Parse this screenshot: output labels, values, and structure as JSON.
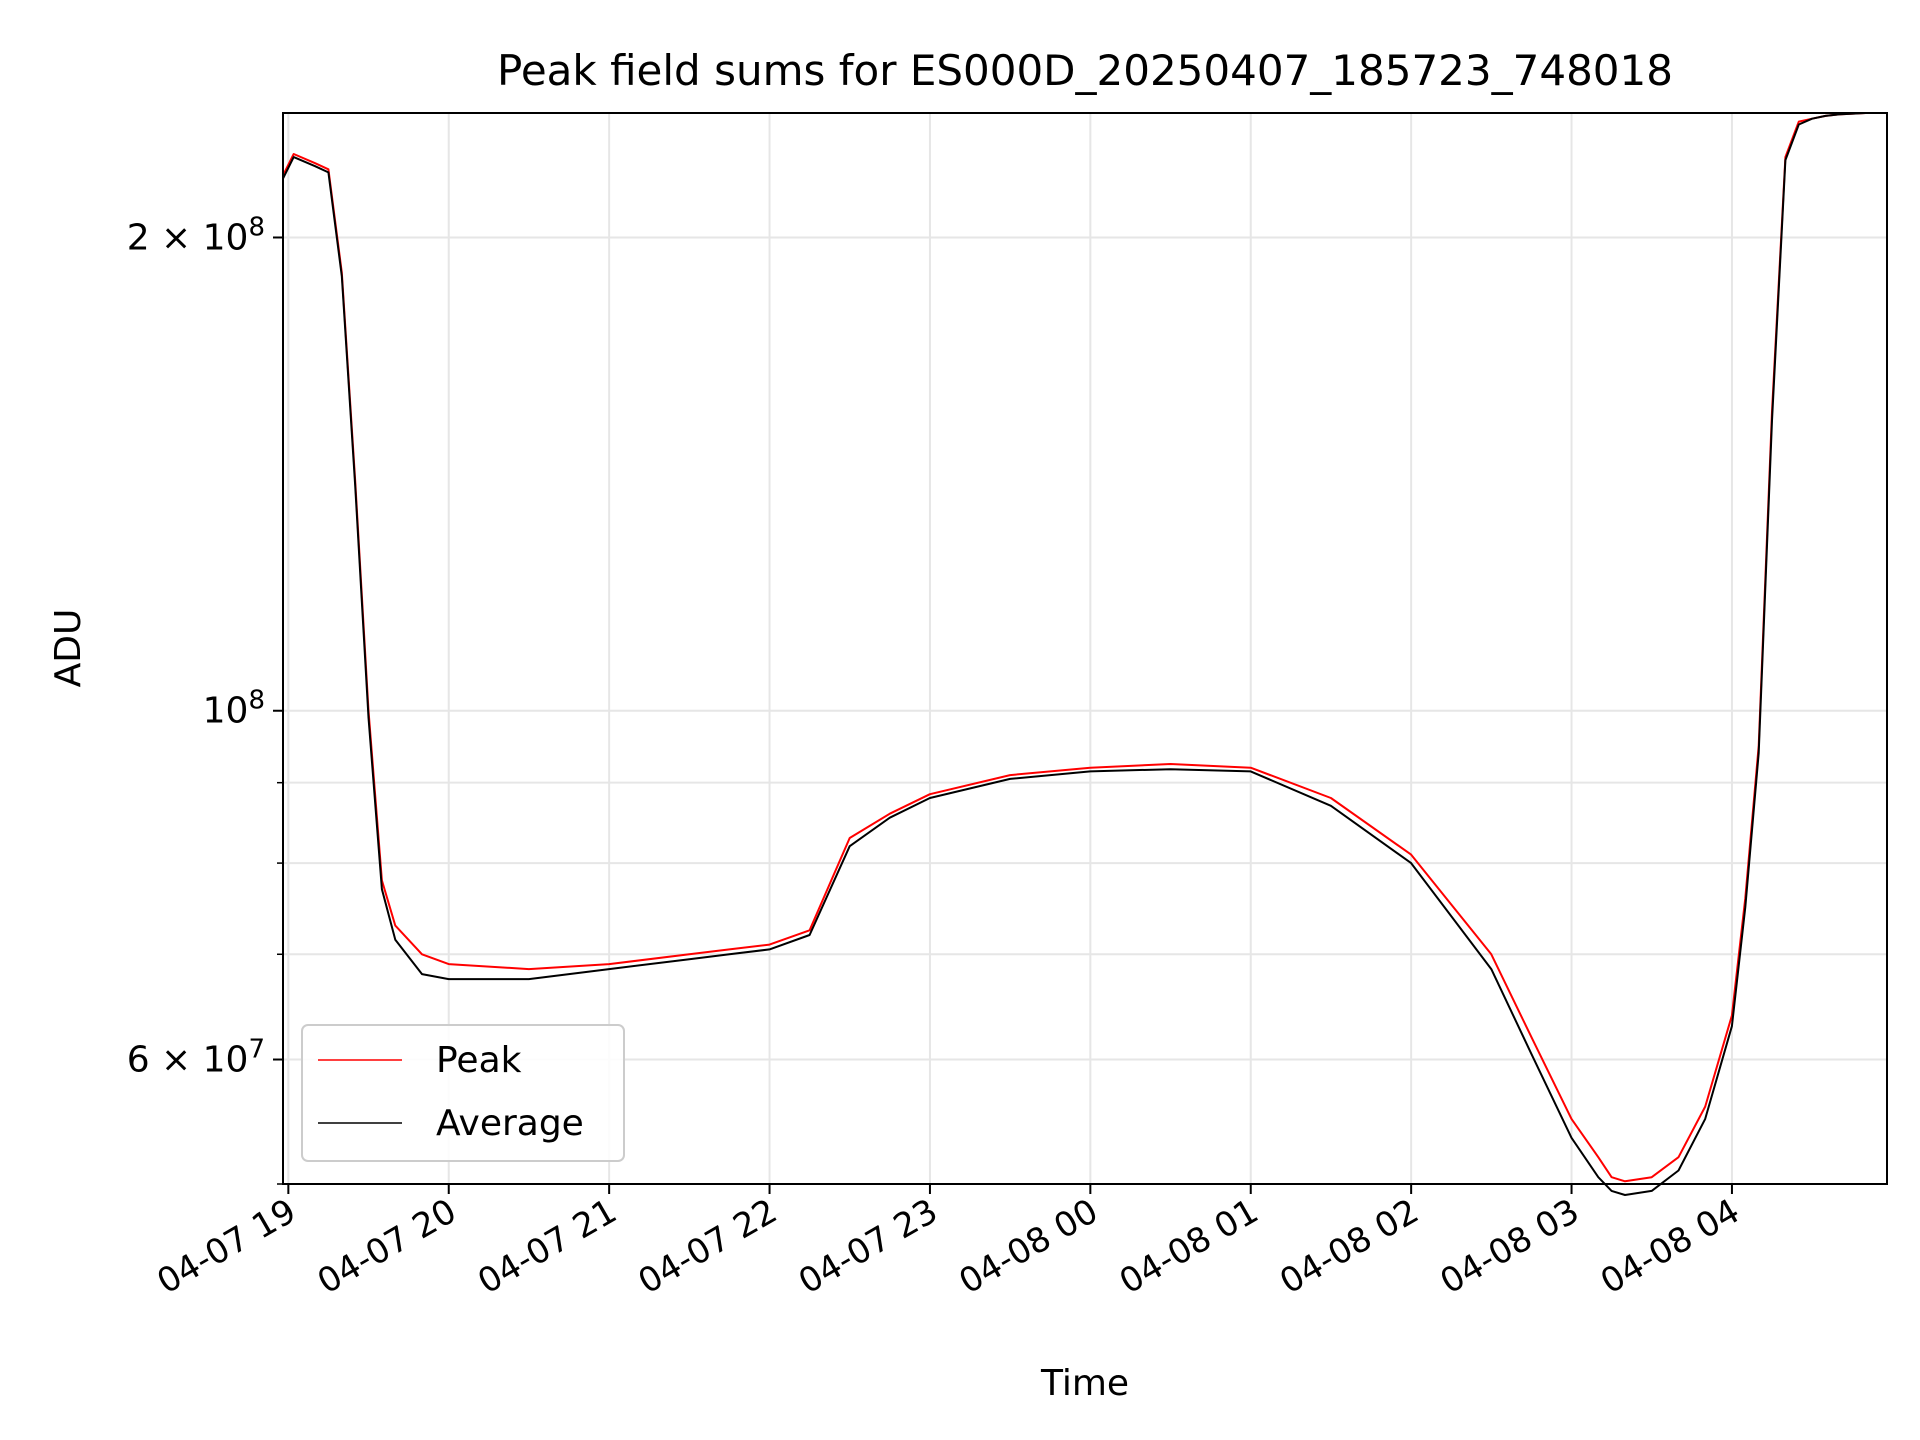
{
  "chart_data": {
    "type": "line",
    "title": "Peak field sums for ES000D_20250407_185723_748018",
    "xlabel": "Time",
    "ylabel": "ADU",
    "yscale": "log",
    "ylim": [
      50000000,
      240000000
    ],
    "xlim": [
      "04-07 18:58",
      "04-08 04:58"
    ],
    "x_ticks": [
      "04-07 19",
      "04-07 20",
      "04-07 21",
      "04-07 22",
      "04-07 23",
      "04-08 00",
      "04-08 01",
      "04-08 02",
      "04-08 03",
      "04-08 04"
    ],
    "y_major_ticks": [
      {
        "value": 200000000,
        "base": "2 × 10",
        "exp": "8"
      },
      {
        "value": 100000000,
        "base": "10",
        "exp": "8"
      },
      {
        "value": 60000000,
        "base": "6 × 10",
        "exp": "7"
      }
    ],
    "y_minor_ticks": [
      300000000,
      90000000,
      80000000,
      70000000,
      50000000
    ],
    "grid": true,
    "legend_position": "lower-left",
    "colors": {
      "peak": "#ff0000",
      "average": "#000000",
      "grid": "#e6e6e6"
    },
    "series": [
      {
        "name": "Peak",
        "color": "#ff0000",
        "x": [
          "04-07 18:58",
          "04-07 19:02",
          "04-07 19:10",
          "04-07 19:15",
          "04-07 19:20",
          "04-07 19:25",
          "04-07 19:30",
          "04-07 19:35",
          "04-07 19:40",
          "04-07 19:50",
          "04-07 20:00",
          "04-07 20:30",
          "04-07 21:00",
          "04-07 21:30",
          "04-07 21:45",
          "04-07 22:00",
          "04-07 22:15",
          "04-07 22:30",
          "04-07 22:45",
          "04-07 23:00",
          "04-07 23:30",
          "04-08 00:00",
          "04-08 00:30",
          "04-08 01:00",
          "04-08 01:30",
          "04-08 02:00",
          "04-08 02:30",
          "04-08 02:45",
          "04-08 03:00",
          "04-08 03:10",
          "04-08 03:15",
          "04-08 03:20",
          "04-08 03:30",
          "04-08 03:40",
          "04-08 03:50",
          "04-08 04:00",
          "04-08 04:05",
          "04-08 04:10",
          "04-08 04:15",
          "04-08 04:20",
          "04-08 04:25",
          "04-08 04:30",
          "04-08 04:35",
          "04-08 04:40",
          "04-08 04:50",
          "04-08 04:58"
        ],
        "y": [
          219000000,
          226000000,
          223000000,
          221000000,
          190000000,
          140000000,
          100000000,
          78000000,
          73000000,
          70000000,
          69000000,
          68500000,
          69000000,
          70000000,
          70500000,
          71000000,
          72500000,
          83000000,
          86000000,
          88500000,
          91000000,
          92000000,
          92500000,
          92000000,
          88000000,
          81000000,
          70000000,
          62000000,
          55000000,
          52000000,
          50500000,
          50200000,
          50500000,
          52000000,
          56000000,
          64000000,
          76000000,
          95000000,
          155000000,
          225000000,
          237000000,
          238000000,
          239000000,
          239500000,
          240000000,
          240000000
        ]
      },
      {
        "name": "Average",
        "color": "#000000",
        "x": [
          "04-07 18:58",
          "04-07 19:02",
          "04-07 19:10",
          "04-07 19:15",
          "04-07 19:20",
          "04-07 19:25",
          "04-07 19:30",
          "04-07 19:35",
          "04-07 19:40",
          "04-07 19:50",
          "04-07 20:00",
          "04-07 20:30",
          "04-07 21:00",
          "04-07 21:30",
          "04-07 21:45",
          "04-07 22:00",
          "04-07 22:15",
          "04-07 22:30",
          "04-07 22:45",
          "04-07 23:00",
          "04-07 23:30",
          "04-08 00:00",
          "04-08 00:30",
          "04-08 01:00",
          "04-08 01:30",
          "04-08 02:00",
          "04-08 02:30",
          "04-08 02:45",
          "04-08 03:00",
          "04-08 03:10",
          "04-08 03:15",
          "04-08 03:20",
          "04-08 03:30",
          "04-08 03:40",
          "04-08 03:50",
          "04-08 04:00",
          "04-08 04:05",
          "04-08 04:10",
          "04-08 04:15",
          "04-08 04:20",
          "04-08 04:25",
          "04-08 04:30",
          "04-08 04:35",
          "04-08 04:40",
          "04-08 04:50",
          "04-08 04:58"
        ],
        "y": [
          218000000,
          225000000,
          222000000,
          220000000,
          189000000,
          139000000,
          99000000,
          77000000,
          71500000,
          68000000,
          67500000,
          67500000,
          68500000,
          69500000,
          70000000,
          70500000,
          72000000,
          82000000,
          85500000,
          88000000,
          90500000,
          91500000,
          91800000,
          91500000,
          87000000,
          80000000,
          68500000,
          60500000,
          53500000,
          50500000,
          49500000,
          49200000,
          49500000,
          51000000,
          55000000,
          63000000,
          75000000,
          94000000,
          153000000,
          224000000,
          236000000,
          238000000,
          239000000,
          239500000,
          240000000,
          240000000
        ]
      }
    ]
  }
}
